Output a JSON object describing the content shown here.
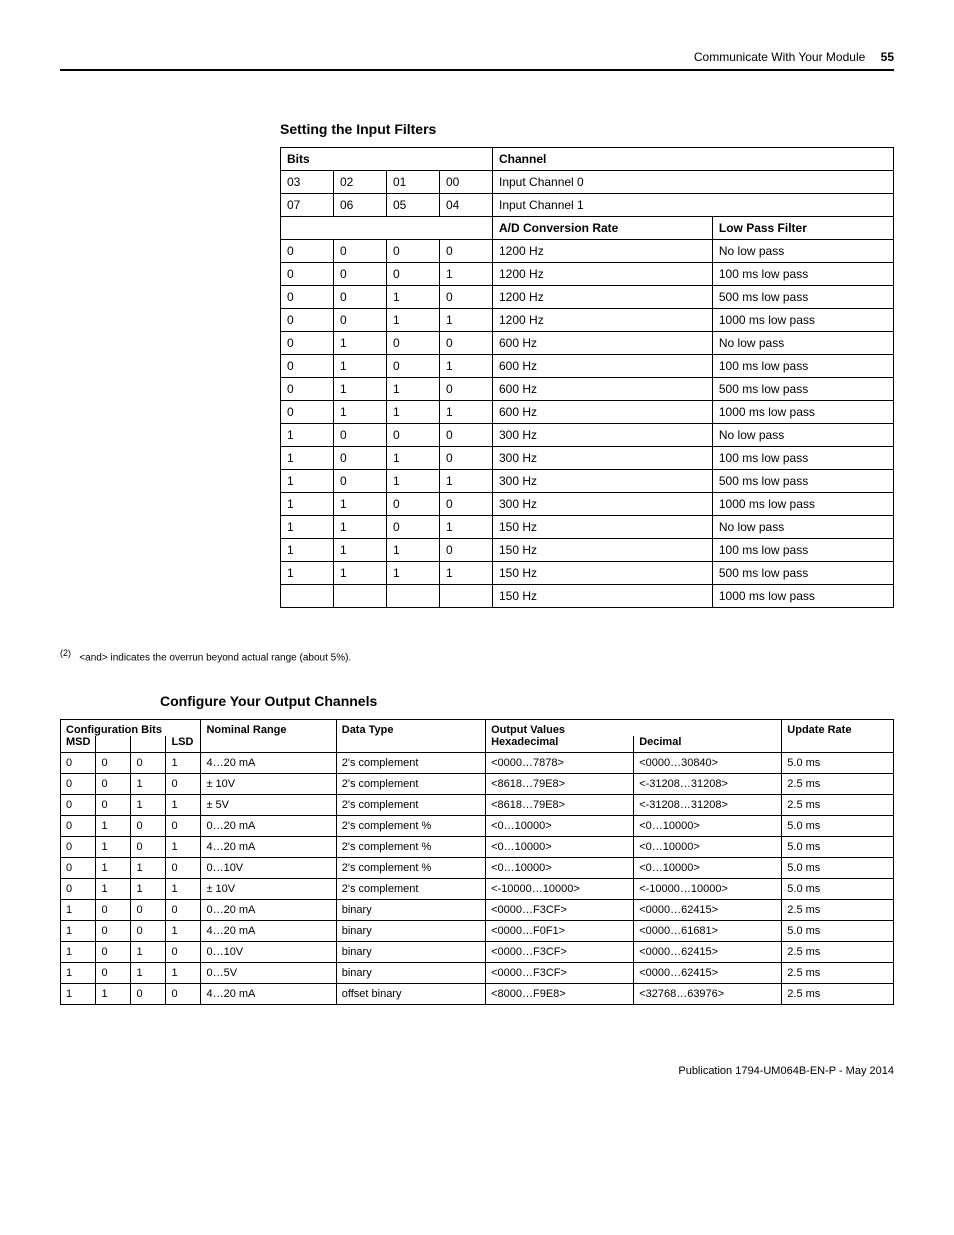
{
  "header": {
    "chapter": "Communicate With Your Module",
    "page": "55"
  },
  "table1": {
    "title": "Setting the Input Filters",
    "headers": {
      "bits": "Bits",
      "channel": "Channel",
      "ad_rate": "A/D Conversion Rate",
      "lpf": "Low Pass Filter"
    },
    "channel_rows": [
      {
        "b3": "03",
        "b2": "02",
        "b1": "01",
        "b0": "00",
        "ch": "Input Channel 0"
      },
      {
        "b3": "07",
        "b2": "06",
        "b1": "05",
        "b0": "04",
        "ch": "Input Channel 1"
      }
    ],
    "rows": [
      {
        "b3": "0",
        "b2": "0",
        "b1": "0",
        "b0": "0",
        "rate": "1200 Hz",
        "lpf": "No low pass"
      },
      {
        "b3": "0",
        "b2": "0",
        "b1": "0",
        "b0": "1",
        "rate": "1200 Hz",
        "lpf": "100 ms low pass"
      },
      {
        "b3": "0",
        "b2": "0",
        "b1": "1",
        "b0": "0",
        "rate": "1200 Hz",
        "lpf": "500 ms low pass"
      },
      {
        "b3": "0",
        "b2": "0",
        "b1": "1",
        "b0": "1",
        "rate": "1200 Hz",
        "lpf": "1000 ms low pass"
      },
      {
        "b3": "0",
        "b2": "1",
        "b1": "0",
        "b0": "0",
        "rate": "600 Hz",
        "lpf": "No low pass"
      },
      {
        "b3": "0",
        "b2": "1",
        "b1": "0",
        "b0": "1",
        "rate": "600 Hz",
        "lpf": "100 ms low pass"
      },
      {
        "b3": "0",
        "b2": "1",
        "b1": "1",
        "b0": "0",
        "rate": "600 Hz",
        "lpf": "500 ms low pass"
      },
      {
        "b3": "0",
        "b2": "1",
        "b1": "1",
        "b0": "1",
        "rate": "600 Hz",
        "lpf": "1000 ms low pass"
      },
      {
        "b3": "1",
        "b2": "0",
        "b1": "0",
        "b0": "0",
        "rate": "300 Hz",
        "lpf": "No low pass"
      },
      {
        "b3": "1",
        "b2": "0",
        "b1": "1",
        "b0": "0",
        "rate": "300 Hz",
        "lpf": "100 ms low pass"
      },
      {
        "b3": "1",
        "b2": "0",
        "b1": "1",
        "b0": "1",
        "rate": "300 Hz",
        "lpf": "500 ms low pass"
      },
      {
        "b3": "1",
        "b2": "1",
        "b1": "0",
        "b0": "0",
        "rate": "300 Hz",
        "lpf": "1000 ms low pass"
      },
      {
        "b3": "1",
        "b2": "1",
        "b1": "0",
        "b0": "1",
        "rate": "150 Hz",
        "lpf": "No low pass"
      },
      {
        "b3": "1",
        "b2": "1",
        "b1": "1",
        "b0": "0",
        "rate": "150 Hz",
        "lpf": "100 ms low pass"
      },
      {
        "b3": "1",
        "b2": "1",
        "b1": "1",
        "b0": "1",
        "rate": "150 Hz",
        "lpf": "500 ms low pass"
      },
      {
        "b3": "",
        "b2": "",
        "b1": "",
        "b0": "",
        "rate": "150 Hz",
        "lpf": "1000 ms low pass"
      }
    ]
  },
  "footnote": {
    "num": "(2)",
    "text": "<and> indicates the overrun beyond actual range (about 5%)."
  },
  "table2": {
    "title": "Configure Your Output Channels",
    "headers": {
      "config": "Configuration Bits",
      "msd": "MSD",
      "lsd": "LSD",
      "nominal": "Nominal Range",
      "dtype": "Data Type",
      "outvals": "Output Values",
      "hex": "Hexadecimal",
      "dec": "Decimal",
      "update": "Update Rate"
    },
    "rows": [
      {
        "b3": "0",
        "b2": "0",
        "b1": "0",
        "b0": "1",
        "range": "4…20 mA",
        "dtype": "2's complement",
        "hex": "<0000…7878>",
        "dec": "<0000…30840>",
        "rate": "5.0 ms"
      },
      {
        "b3": "0",
        "b2": "0",
        "b1": "1",
        "b0": "0",
        "range": "± 10V",
        "dtype": "2's complement",
        "hex": "<8618…79E8>",
        "dec": "<-31208…31208>",
        "rate": "2.5 ms"
      },
      {
        "b3": "0",
        "b2": "0",
        "b1": "1",
        "b0": "1",
        "range": "± 5V",
        "dtype": "2's complement",
        "hex": "<8618…79E8>",
        "dec": "<-31208…31208>",
        "rate": "2.5 ms"
      },
      {
        "b3": "0",
        "b2": "1",
        "b1": "0",
        "b0": "0",
        "range": "0…20 mA",
        "dtype": "2's complement %",
        "hex": "<0…10000>",
        "dec": "<0…10000>",
        "rate": "5.0 ms"
      },
      {
        "b3": "0",
        "b2": "1",
        "b1": "0",
        "b0": "1",
        "range": "4…20 mA",
        "dtype": "2's complement %",
        "hex": "<0…10000>",
        "dec": "<0…10000>",
        "rate": "5.0 ms"
      },
      {
        "b3": "0",
        "b2": "1",
        "b1": "1",
        "b0": "0",
        "range": "0…10V",
        "dtype": "2's complement %",
        "hex": "<0…10000>",
        "dec": "<0…10000>",
        "rate": "5.0 ms"
      },
      {
        "b3": "0",
        "b2": "1",
        "b1": "1",
        "b0": "1",
        "range": "± 10V",
        "dtype": "2's complement",
        "hex": "<-10000…10000>",
        "dec": "<-10000…10000>",
        "rate": "5.0 ms"
      },
      {
        "b3": "1",
        "b2": "0",
        "b1": "0",
        "b0": "0",
        "range": "0…20 mA",
        "dtype": "binary",
        "hex": "<0000…F3CF>",
        "dec": "<0000…62415>",
        "rate": "2.5 ms"
      },
      {
        "b3": "1",
        "b2": "0",
        "b1": "0",
        "b0": "1",
        "range": "4…20 mA",
        "dtype": "binary",
        "hex": "<0000…F0F1>",
        "dec": "<0000…61681>",
        "rate": "5.0 ms"
      },
      {
        "b3": "1",
        "b2": "0",
        "b1": "1",
        "b0": "0",
        "range": "0…10V",
        "dtype": "binary",
        "hex": "<0000…F3CF>",
        "dec": "<0000…62415>",
        "rate": "2.5 ms"
      },
      {
        "b3": "1",
        "b2": "0",
        "b1": "1",
        "b0": "1",
        "range": "0…5V",
        "dtype": "binary",
        "hex": "<0000…F3CF>",
        "dec": "<0000…62415>",
        "rate": "2.5 ms"
      },
      {
        "b3": "1",
        "b2": "1",
        "b1": "0",
        "b0": "0",
        "range": "4…20 mA",
        "dtype": "offset binary",
        "hex": "<8000…F9E8>",
        "dec": "<32768…63976>",
        "rate": "2.5 ms"
      }
    ]
  },
  "footer": {
    "pub": "Publication 1794-UM064B-EN-P - May 2014"
  }
}
